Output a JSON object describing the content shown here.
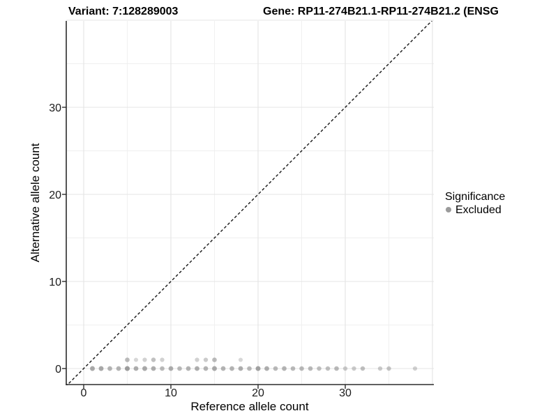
{
  "chart_data": {
    "type": "scatter",
    "title_left": "Variant: 7:128289003",
    "title_right": "Gene: RP11-274B21.1-RP11-274B21.2 (ENSG",
    "xlabel": "Reference allele count",
    "ylabel": "Alternative allele count",
    "x_ticks": [
      0,
      10,
      20,
      30
    ],
    "y_ticks": [
      0,
      10,
      20,
      30
    ],
    "xlim": [
      -2.1,
      40.2
    ],
    "ylim": [
      -2.1,
      40.2
    ],
    "grid": "major and minor gridlines, white background",
    "background": "#ffffff",
    "grid_major_color": "#e4e4e4",
    "grid_minor_color": "#efefef",
    "axis_color": "#2b2b2b",
    "point_color": "#8c8c8c",
    "reference_line": {
      "type": "identity y=x",
      "style": "dashed",
      "color": "#141414"
    },
    "legend": {
      "title": "Significance",
      "position": "right",
      "items": [
        {
          "label": "Excluded",
          "color": "#9b9b9b"
        }
      ]
    },
    "series": [
      {
        "name": "Excluded",
        "points": [
          {
            "x": 1,
            "y": 0,
            "o": 0.75
          },
          {
            "x": 2,
            "y": 0,
            "o": 0.75
          },
          {
            "x": 3,
            "y": 0,
            "o": 0.65
          },
          {
            "x": 4,
            "y": 0,
            "o": 0.65
          },
          {
            "x": 5,
            "y": 0,
            "o": 0.85
          },
          {
            "x": 6,
            "y": 0,
            "o": 0.7
          },
          {
            "x": 7,
            "y": 0,
            "o": 0.75
          },
          {
            "x": 8,
            "y": 0,
            "o": 0.7
          },
          {
            "x": 9,
            "y": 0,
            "o": 0.6
          },
          {
            "x": 10,
            "y": 0,
            "o": 0.7
          },
          {
            "x": 11,
            "y": 0,
            "o": 0.6
          },
          {
            "x": 12,
            "y": 0,
            "o": 0.65
          },
          {
            "x": 13,
            "y": 0,
            "o": 0.7
          },
          {
            "x": 14,
            "y": 0,
            "o": 0.65
          },
          {
            "x": 15,
            "y": 0,
            "o": 0.75
          },
          {
            "x": 16,
            "y": 0,
            "o": 0.65
          },
          {
            "x": 17,
            "y": 0,
            "o": 0.65
          },
          {
            "x": 18,
            "y": 0,
            "o": 0.7
          },
          {
            "x": 19,
            "y": 0,
            "o": 0.6
          },
          {
            "x": 20,
            "y": 0,
            "o": 0.8
          },
          {
            "x": 21,
            "y": 0,
            "o": 0.7
          },
          {
            "x": 22,
            "y": 0,
            "o": 0.6
          },
          {
            "x": 23,
            "y": 0,
            "o": 0.65
          },
          {
            "x": 24,
            "y": 0,
            "o": 0.6
          },
          {
            "x": 25,
            "y": 0,
            "o": 0.6
          },
          {
            "x": 26,
            "y": 0,
            "o": 0.6
          },
          {
            "x": 27,
            "y": 0,
            "o": 0.55
          },
          {
            "x": 28,
            "y": 0,
            "o": 0.55
          },
          {
            "x": 29,
            "y": 0,
            "o": 0.6
          },
          {
            "x": 30,
            "y": 0,
            "o": 0.45
          },
          {
            "x": 31,
            "y": 0,
            "o": 0.45
          },
          {
            "x": 32,
            "y": 0,
            "o": 0.55
          },
          {
            "x": 34,
            "y": 0,
            "o": 0.45
          },
          {
            "x": 35,
            "y": 0,
            "o": 0.5
          },
          {
            "x": 38,
            "y": 0,
            "o": 0.4
          },
          {
            "x": 5,
            "y": 1,
            "o": 0.6
          },
          {
            "x": 6,
            "y": 1,
            "o": 0.35
          },
          {
            "x": 7,
            "y": 1,
            "o": 0.4
          },
          {
            "x": 8,
            "y": 1,
            "o": 0.55
          },
          {
            "x": 9,
            "y": 1,
            "o": 0.4
          },
          {
            "x": 13,
            "y": 1,
            "o": 0.4
          },
          {
            "x": 14,
            "y": 1,
            "o": 0.45
          },
          {
            "x": 15,
            "y": 1,
            "o": 0.6
          },
          {
            "x": 18,
            "y": 1,
            "o": 0.35
          }
        ]
      }
    ]
  }
}
